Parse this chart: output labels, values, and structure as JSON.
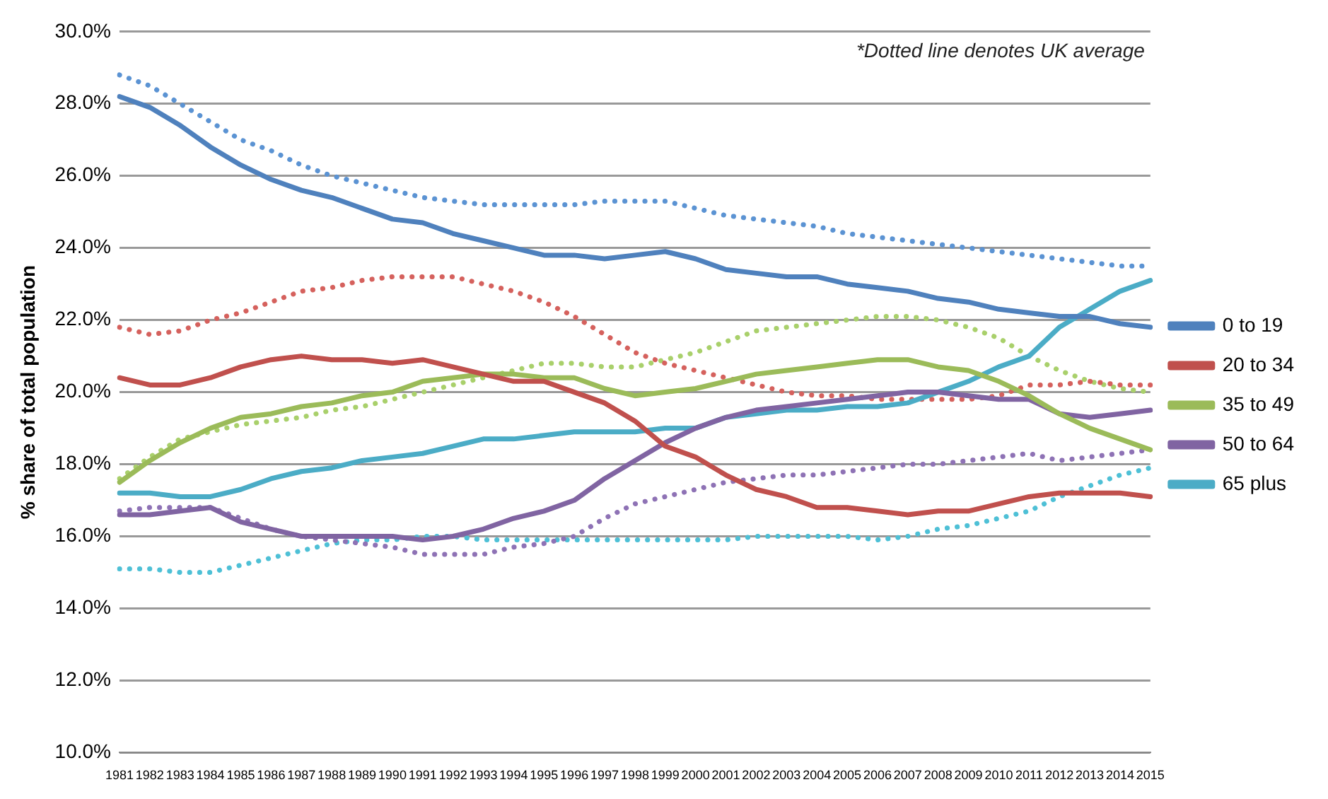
{
  "chart_data": {
    "type": "line",
    "ylabel": "% share of total population",
    "annotations": [
      "*Dotted line denotes UK average"
    ],
    "categories": [
      "1981",
      "1982",
      "1983",
      "1984",
      "1985",
      "1986",
      "1987",
      "1988",
      "1989",
      "1990",
      "1991",
      "1992",
      "1993",
      "1994",
      "1995",
      "1996",
      "1997",
      "1998",
      "1999",
      "2000",
      "2001",
      "2002",
      "2003",
      "2004",
      "2005",
      "2006",
      "2007",
      "2008",
      "2009",
      "2010",
      "2011",
      "2012",
      "2013",
      "2014",
      "2015"
    ],
    "ylim": [
      10,
      30
    ],
    "yticks": [
      {
        "value": 10,
        "label": "10.0%"
      },
      {
        "value": 12,
        "label": "12.0%"
      },
      {
        "value": 14,
        "label": "14.0%"
      },
      {
        "value": 16,
        "label": "16.0%"
      },
      {
        "value": 18,
        "label": "18.0%"
      },
      {
        "value": 20,
        "label": "20.0%"
      },
      {
        "value": 22,
        "label": "22.0%"
      },
      {
        "value": 24,
        "label": "24.0%"
      },
      {
        "value": 26,
        "label": "26.0%"
      },
      {
        "value": 28,
        "label": "28.0%"
      },
      {
        "value": 30,
        "label": "30.0%"
      }
    ],
    "grid": "y",
    "legend": "right",
    "marker": "none",
    "series": [
      {
        "name": "0 to 19",
        "color": "#4f81bd",
        "line_style": "solid",
        "values": [
          28.2,
          27.9,
          27.4,
          26.8,
          26.3,
          25.9,
          25.6,
          25.4,
          25.1,
          24.8,
          24.7,
          24.4,
          24.2,
          24.0,
          23.8,
          23.8,
          23.7,
          23.8,
          23.9,
          23.7,
          23.4,
          23.3,
          23.2,
          23.2,
          23.0,
          22.9,
          22.8,
          22.6,
          22.5,
          22.3,
          22.2,
          22.1,
          22.1,
          21.9,
          21.8
        ]
      },
      {
        "name": "20 to 34",
        "color": "#c0504d",
        "line_style": "solid",
        "values": [
          20.4,
          20.2,
          20.2,
          20.4,
          20.7,
          20.9,
          21.0,
          20.9,
          20.9,
          20.8,
          20.9,
          20.7,
          20.5,
          20.3,
          20.3,
          20.0,
          19.7,
          19.2,
          18.5,
          18.2,
          17.7,
          17.3,
          17.1,
          16.8,
          16.8,
          16.7,
          16.6,
          16.7,
          16.7,
          16.9,
          17.1,
          17.2,
          17.2,
          17.2,
          17.1
        ]
      },
      {
        "name": "35 to 49",
        "color": "#9bbb59",
        "line_style": "solid",
        "values": [
          17.5,
          18.1,
          18.6,
          19.0,
          19.3,
          19.4,
          19.6,
          19.7,
          19.9,
          20.0,
          20.3,
          20.4,
          20.5,
          20.5,
          20.4,
          20.4,
          20.1,
          19.9,
          20.0,
          20.1,
          20.3,
          20.5,
          20.6,
          20.7,
          20.8,
          20.9,
          20.9,
          20.7,
          20.6,
          20.3,
          19.9,
          19.4,
          19.0,
          18.7,
          18.4
        ]
      },
      {
        "name": "50 to 64",
        "color": "#8064a2",
        "line_style": "solid",
        "values": [
          16.6,
          16.6,
          16.7,
          16.8,
          16.4,
          16.2,
          16.0,
          16.0,
          16.0,
          16.0,
          15.9,
          16.0,
          16.2,
          16.5,
          16.7,
          17.0,
          17.6,
          18.1,
          18.6,
          19.0,
          19.3,
          19.5,
          19.6,
          19.7,
          19.8,
          19.9,
          20.0,
          20.0,
          19.9,
          19.8,
          19.8,
          19.4,
          19.3,
          19.4,
          19.5
        ]
      },
      {
        "name": "65 plus",
        "color": "#4bacc6",
        "line_style": "solid",
        "values": [
          17.2,
          17.2,
          17.1,
          17.1,
          17.3,
          17.6,
          17.8,
          17.9,
          18.1,
          18.2,
          18.3,
          18.5,
          18.7,
          18.7,
          18.8,
          18.9,
          18.9,
          18.9,
          19.0,
          19.0,
          19.3,
          19.4,
          19.5,
          19.5,
          19.6,
          19.6,
          19.7,
          20.0,
          20.3,
          20.7,
          21.0,
          21.8,
          22.3,
          22.8,
          23.1
        ]
      },
      {
        "color": "#5b93d3",
        "line_style": "dotted",
        "values": [
          28.8,
          28.5,
          28.0,
          27.5,
          27.0,
          26.7,
          26.3,
          26.0,
          25.8,
          25.6,
          25.4,
          25.3,
          25.2,
          25.2,
          25.2,
          25.2,
          25.3,
          25.3,
          25.3,
          25.1,
          24.9,
          24.8,
          24.7,
          24.6,
          24.4,
          24.3,
          24.2,
          24.1,
          24.0,
          23.9,
          23.8,
          23.7,
          23.6,
          23.5,
          23.5
        ]
      },
      {
        "color": "#d5615d",
        "line_style": "dotted",
        "values": [
          21.8,
          21.6,
          21.7,
          22.0,
          22.2,
          22.5,
          22.8,
          22.9,
          23.1,
          23.2,
          23.2,
          23.2,
          23.0,
          22.8,
          22.5,
          22.1,
          21.6,
          21.1,
          20.8,
          20.6,
          20.4,
          20.2,
          20.0,
          19.9,
          19.9,
          19.8,
          19.8,
          19.8,
          19.8,
          19.9,
          20.2,
          20.2,
          20.3,
          20.2,
          20.2
        ]
      },
      {
        "color": "#a9d06b",
        "line_style": "dotted",
        "values": [
          17.6,
          18.2,
          18.7,
          18.9,
          19.1,
          19.2,
          19.3,
          19.5,
          19.6,
          19.8,
          20.0,
          20.2,
          20.4,
          20.6,
          20.8,
          20.8,
          20.7,
          20.7,
          20.9,
          21.1,
          21.4,
          21.7,
          21.8,
          21.9,
          22.0,
          22.1,
          22.1,
          22.0,
          21.8,
          21.5,
          21.0,
          20.6,
          20.3,
          20.1,
          20.0
        ]
      },
      {
        "color": "#8e72b5",
        "line_style": "dotted",
        "values": [
          16.7,
          16.8,
          16.8,
          16.8,
          16.5,
          16.2,
          16.0,
          15.9,
          15.8,
          15.7,
          15.5,
          15.5,
          15.5,
          15.7,
          15.8,
          16.0,
          16.5,
          16.9,
          17.1,
          17.3,
          17.5,
          17.6,
          17.7,
          17.7,
          17.8,
          17.9,
          18.0,
          18.0,
          18.1,
          18.2,
          18.3,
          18.1,
          18.2,
          18.3,
          18.4
        ]
      },
      {
        "color": "#4ec0d6",
        "line_style": "dotted",
        "values": [
          15.1,
          15.1,
          15.0,
          15.0,
          15.2,
          15.4,
          15.6,
          15.8,
          15.9,
          15.9,
          16.0,
          16.0,
          15.9,
          15.9,
          15.9,
          15.9,
          15.9,
          15.9,
          15.9,
          15.9,
          15.9,
          16.0,
          16.0,
          16.0,
          16.0,
          15.9,
          16.0,
          16.2,
          16.3,
          16.5,
          16.7,
          17.1,
          17.4,
          17.7,
          17.9
        ]
      }
    ]
  }
}
